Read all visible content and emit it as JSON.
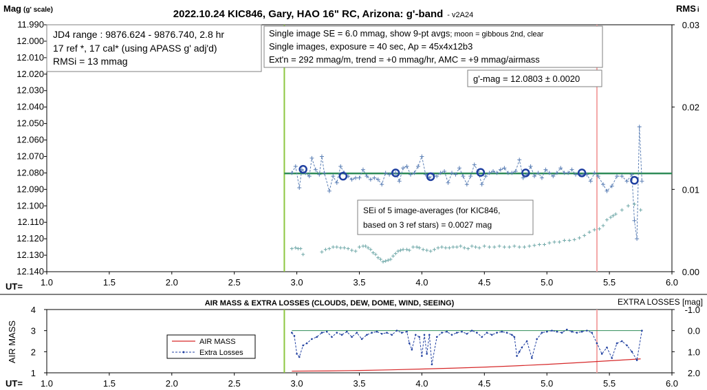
{
  "chart_data": [
    {
      "type": "scatter",
      "title": "2022.10.24 KIC846, Gary, HAO 16\" RC, Arizona: g'-band",
      "title_suffix": "- v2A24",
      "ylabel_main": "Mag",
      "ylabel_sub": "(g' scale)",
      "y2label_main": "RMS",
      "y2label_sub": "i",
      "xlabel": "UT=",
      "xlim": [
        1.0,
        6.0
      ],
      "ylim": [
        11.99,
        12.14
      ],
      "y_inverted": true,
      "y2lim": [
        0.0,
        0.03
      ],
      "x_ticks": [
        "1.0",
        "1.5",
        "2.0",
        "2.5",
        "3.0",
        "3.5",
        "4.0",
        "4.5",
        "5.0",
        "5.5",
        "6.0"
      ],
      "y_ticks": [
        "11.990",
        "12.000",
        "12.010",
        "12.020",
        "12.030",
        "12.040",
        "12.050",
        "12.060",
        "12.070",
        "12.080",
        "12.090",
        "12.100",
        "12.110",
        "12.120",
        "12.130",
        "12.140"
      ],
      "y2_ticks": [
        "0.03",
        "0.02",
        "0.01",
        "0.00"
      ],
      "grid": false,
      "vertical_lines": [
        {
          "x": 2.9,
          "color": "#8cc63f"
        },
        {
          "x": 5.4,
          "color": "#f4a6a6"
        }
      ],
      "fit_line": {
        "x": [
          2.9,
          6.0
        ],
        "y": 12.0803,
        "color": "#2e8b57"
      },
      "annotations": {
        "left_box": [
          "JD4 range : 9876.624 - 9876.740,  2.8 hr",
          "17 ref *, 17 cal* (using APASS g' adj'd)",
          "RMSi = 13 mmag"
        ],
        "center_box_line1_main": "Single image SE = 6.0 mmag, show  9-pt avgs",
        "center_box_line1_small": "; moon = gibbous 2nd, clear",
        "center_box_lines": [
          "Single images, exposure = 40 sec, Ap = 45x4x12b3",
          "Ext'n = 292 mmag/m, trend = +0 mmag/hr, AMC = +9 mmag/airmass"
        ],
        "mag_box": "g'-mag = 12.0803 ± 0.0020",
        "sei_box": [
          "SEi of 5 image-averages (for KIC846,",
          "based on 3 ref stars) = 0.0027 mag"
        ]
      },
      "series": [
        {
          "name": "single images",
          "color": "#5b7fb5",
          "x": [
            2.96,
            2.99,
            3.02,
            3.04,
            3.07,
            3.1,
            3.12,
            3.15,
            3.18,
            3.2,
            3.22,
            3.26,
            3.29,
            3.32,
            3.35,
            3.38,
            3.41,
            3.44,
            3.47,
            3.5,
            3.53,
            3.56,
            3.59,
            3.62,
            3.65,
            3.68,
            3.71,
            3.74,
            3.77,
            3.79,
            3.82,
            3.85,
            3.88,
            3.91,
            3.94,
            3.97,
            4.0,
            4.03,
            4.06,
            4.09,
            4.12,
            4.15,
            4.18,
            4.21,
            4.24,
            4.27,
            4.3,
            4.33,
            4.36,
            4.39,
            4.42,
            4.45,
            4.48,
            4.51,
            4.54,
            4.57,
            4.6,
            4.63,
            4.66,
            4.69,
            4.72,
            4.75,
            4.78,
            4.81,
            4.84,
            4.87,
            4.9,
            4.93,
            4.96,
            4.99,
            5.02,
            5.05,
            5.08,
            5.11,
            5.14,
            5.17,
            5.2,
            5.23,
            5.26,
            5.29,
            5.32,
            5.35,
            5.38,
            5.41,
            5.45,
            5.48,
            5.52,
            5.56,
            5.6,
            5.64,
            5.68,
            5.7,
            5.72,
            5.74,
            5.76
          ],
          "y": [
            12.08,
            12.076,
            12.089,
            12.078,
            12.08,
            12.082,
            12.071,
            12.078,
            12.081,
            12.07,
            12.08,
            12.091,
            12.082,
            12.086,
            12.076,
            12.08,
            12.082,
            12.084,
            12.083,
            12.083,
            12.078,
            12.082,
            12.084,
            12.083,
            12.084,
            12.087,
            12.08,
            12.081,
            12.08,
            12.08,
            12.085,
            12.077,
            12.076,
            12.081,
            12.08,
            12.076,
            12.07,
            12.081,
            12.083,
            12.081,
            12.082,
            12.08,
            12.079,
            12.086,
            12.08,
            12.081,
            12.077,
            12.082,
            12.087,
            12.082,
            12.075,
            12.079,
            12.087,
            12.082,
            12.08,
            12.079,
            12.08,
            12.078,
            12.077,
            12.08,
            12.08,
            12.079,
            12.072,
            12.083,
            12.081,
            12.076,
            12.082,
            12.08,
            12.083,
            12.078,
            12.08,
            12.082,
            12.08,
            12.077,
            12.08,
            12.08,
            12.078,
            12.081,
            12.081,
            12.081,
            12.081,
            12.085,
            12.08,
            12.082,
            12.087,
            12.091,
            12.088,
            12.082,
            12.082,
            12.085,
            12.081,
            12.109,
            12.12,
            12.052,
            12.085
          ]
        },
        {
          "name": "9-pt averages",
          "color": "#1f3fa0",
          "x": [
            3.05,
            3.37,
            3.79,
            4.07,
            4.47,
            4.83,
            5.28,
            5.7
          ],
          "y": [
            12.0778,
            12.082,
            12.08,
            12.0823,
            12.0797,
            12.08,
            12.08,
            12.0845
          ]
        },
        {
          "name": "RMSi",
          "color": "#6fa8a8",
          "axis": "y2",
          "x": [
            2.96,
            2.99,
            3.01,
            3.03,
            3.05,
            3.2,
            3.23,
            3.26,
            3.29,
            3.32,
            3.35,
            3.38,
            3.41,
            3.44,
            3.47,
            3.5,
            3.53,
            3.55,
            3.57,
            3.59,
            3.61,
            3.63,
            3.65,
            3.67,
            3.69,
            3.71,
            3.73,
            3.75,
            3.77,
            3.79,
            3.81,
            3.83,
            3.85,
            3.88,
            3.9,
            3.93,
            3.96,
            3.98,
            4.01,
            4.04,
            4.07,
            4.1,
            4.13,
            4.16,
            4.19,
            4.22,
            4.25,
            4.28,
            4.31,
            4.34,
            4.37,
            4.4,
            4.43,
            4.46,
            4.5,
            4.54,
            4.58,
            4.62,
            4.66,
            4.7,
            4.74,
            4.78,
            4.82,
            4.86,
            4.9,
            4.94,
            4.98,
            5.02,
            5.06,
            5.1,
            5.14,
            5.18,
            5.22,
            5.26,
            5.3,
            5.34,
            5.38,
            5.42,
            5.45,
            5.48,
            5.51,
            5.53,
            5.55,
            5.6,
            5.65,
            5.7,
            5.75
          ],
          "y": [
            0.0028,
            0.0029,
            0.0028,
            0.0028,
            0.0021,
            0.0024,
            0.0027,
            0.0028,
            0.003,
            0.003,
            0.0029,
            0.0029,
            0.0028,
            0.0026,
            0.0025,
            0.003,
            0.0031,
            0.0031,
            0.0029,
            0.0027,
            0.0023,
            0.0021,
            0.0017,
            0.0015,
            0.0012,
            0.0013,
            0.0014,
            0.0015,
            0.0019,
            0.0022,
            0.0025,
            0.0026,
            0.0027,
            0.0027,
            0.0026,
            0.003,
            0.003,
            0.0029,
            0.0027,
            0.0026,
            0.0025,
            0.0027,
            0.0029,
            0.003,
            0.0029,
            0.0029,
            0.003,
            0.003,
            0.0031,
            0.0029,
            0.0028,
            0.0031,
            0.003,
            0.0029,
            0.0031,
            0.003,
            0.003,
            0.0031,
            0.003,
            0.003,
            0.0031,
            0.003,
            0.003,
            0.0031,
            0.0032,
            0.0033,
            0.0033,
            0.0035,
            0.0036,
            0.0036,
            0.0038,
            0.0038,
            0.0039,
            0.0041,
            0.0044,
            0.0048,
            0.0051,
            0.0052,
            0.0056,
            0.0063,
            0.0066,
            0.0068,
            0.007,
            0.0075,
            0.008,
            0.0082,
            0.0075
          ]
        }
      ]
    },
    {
      "type": "line",
      "title": "AIR MASS & EXTRA LOSSES (CLOUDS, DEW, DOME, WIND, SEEING)",
      "ylabel": "AIR MASS",
      "y2label": "EXTRA LOSSES [mag]",
      "xlabel": "UT=",
      "xlim": [
        1.0,
        6.0
      ],
      "ylim": [
        1,
        4
      ],
      "y2lim": [
        2.0,
        -1.0
      ],
      "x_ticks": [
        "1.0",
        "1.5",
        "2.0",
        "2.5",
        "3.0",
        "3.5",
        "4.0",
        "4.5",
        "5.0",
        "5.5",
        "6.0"
      ],
      "y_ticks": [
        "1",
        "2",
        "3",
        "4"
      ],
      "y2_ticks": [
        "2.0",
        "1.0",
        "0.0",
        "-1.0"
      ],
      "grid": false,
      "legend_placement": "left",
      "vertical_lines": [
        {
          "x": 2.9,
          "color": "#8cc63f"
        },
        {
          "x": 5.4,
          "color": "#f4a6a6"
        }
      ],
      "reference_line": {
        "axis": "y2",
        "y": 0.0,
        "color": "#2e8b57"
      },
      "series": [
        {
          "name": "AIR MASS",
          "color": "#d62728",
          "style": "solid",
          "x": [
            2.96,
            3.25,
            3.5,
            3.75,
            4.0,
            4.25,
            4.5,
            4.75,
            5.0,
            5.25,
            5.5,
            5.75
          ],
          "y": [
            1.08,
            1.09,
            1.11,
            1.14,
            1.18,
            1.22,
            1.27,
            1.33,
            1.4,
            1.48,
            1.57,
            1.66
          ]
        },
        {
          "name": "Extra Losses",
          "color": "#1f3fa0",
          "style": "dashed",
          "axis": "y2",
          "x": [
            2.96,
            2.98,
            3.0,
            3.02,
            3.05,
            3.08,
            3.12,
            3.16,
            3.2,
            3.24,
            3.28,
            3.32,
            3.36,
            3.4,
            3.44,
            3.48,
            3.52,
            3.56,
            3.6,
            3.64,
            3.68,
            3.72,
            3.76,
            3.8,
            3.84,
            3.88,
            3.9,
            3.92,
            3.95,
            3.98,
            4.0,
            4.02,
            4.04,
            4.06,
            4.08,
            4.12,
            4.16,
            4.2,
            4.24,
            4.28,
            4.32,
            4.36,
            4.4,
            4.44,
            4.48,
            4.52,
            4.56,
            4.6,
            4.64,
            4.68,
            4.72,
            4.74,
            4.76,
            4.78,
            4.8,
            4.84,
            4.88,
            4.92,
            4.96,
            5.0,
            5.04,
            5.08,
            5.12,
            5.16,
            5.2,
            5.24,
            5.28,
            5.32,
            5.36,
            5.4,
            5.44,
            5.48,
            5.52,
            5.56,
            5.6,
            5.64,
            5.68,
            5.72,
            5.76
          ],
          "y": [
            0.1,
            0.25,
            1.1,
            1.25,
            0.7,
            0.6,
            0.4,
            0.3,
            0.1,
            0.05,
            0.3,
            0.1,
            0.2,
            0.05,
            0.3,
            0.1,
            0.4,
            0.2,
            0.1,
            0.05,
            0.15,
            0.1,
            0.2,
            0.0,
            0.1,
            0.05,
            0.6,
            0.9,
            0.2,
            0.3,
            1.2,
            0.2,
            1.1,
            0.2,
            1.6,
            0.3,
            0.1,
            0.05,
            0.2,
            0.1,
            0.05,
            0.15,
            0.0,
            0.1,
            0.3,
            0.1,
            0.2,
            0.1,
            0.05,
            0.1,
            0.2,
            0.3,
            1.2,
            1.0,
            0.8,
            0.5,
            1.3,
            0.4,
            0.1,
            0.05,
            0.0,
            0.05,
            0.1,
            -0.05,
            0.05,
            0.1,
            0.05,
            0.0,
            0.1,
            0.6,
            1.1,
            0.8,
            1.3,
            0.6,
            0.5,
            0.7,
            1.0,
            1.4,
            0.0
          ]
        }
      ]
    }
  ]
}
